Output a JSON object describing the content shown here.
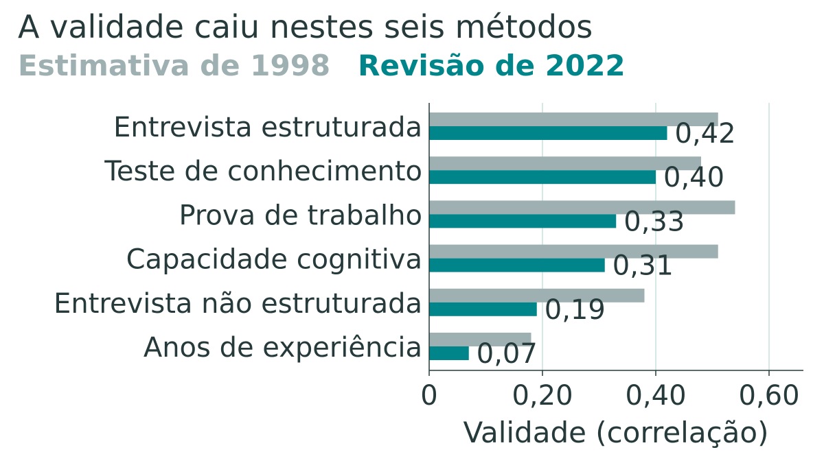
{
  "chart_data": {
    "type": "bar",
    "orientation": "horizontal",
    "title": "A validade caiu nestes seis métodos",
    "xlabel": "Validade (correlação)",
    "ylabel": "",
    "categories": [
      "Entrevista estruturada",
      "Teste de conhecimento",
      "Prova de trabalho",
      "Capacidade cognitiva",
      "Entrevista não estruturada",
      "Anos de experiência"
    ],
    "series": [
      {
        "name": "Estimativa de 1998",
        "color": "#9eb0b1",
        "values": [
          0.51,
          0.48,
          0.54,
          0.51,
          0.38,
          0.18
        ]
      },
      {
        "name": "Revisão de 2022",
        "color": "#00868a",
        "values": [
          0.42,
          0.4,
          0.33,
          0.31,
          0.19,
          0.07
        ]
      }
    ],
    "data_labels": [
      "0,42",
      "0,40",
      "0,33",
      "0,31",
      "0,19",
      "0,07"
    ],
    "xlim": [
      0,
      0.66
    ],
    "xticks": [
      0,
      0.2,
      0.4,
      0.6
    ],
    "xtick_labels": [
      "0",
      "0,20",
      "0,40",
      "0,60"
    ],
    "grid": "vertical",
    "legend_placement": "top-left, below title"
  }
}
